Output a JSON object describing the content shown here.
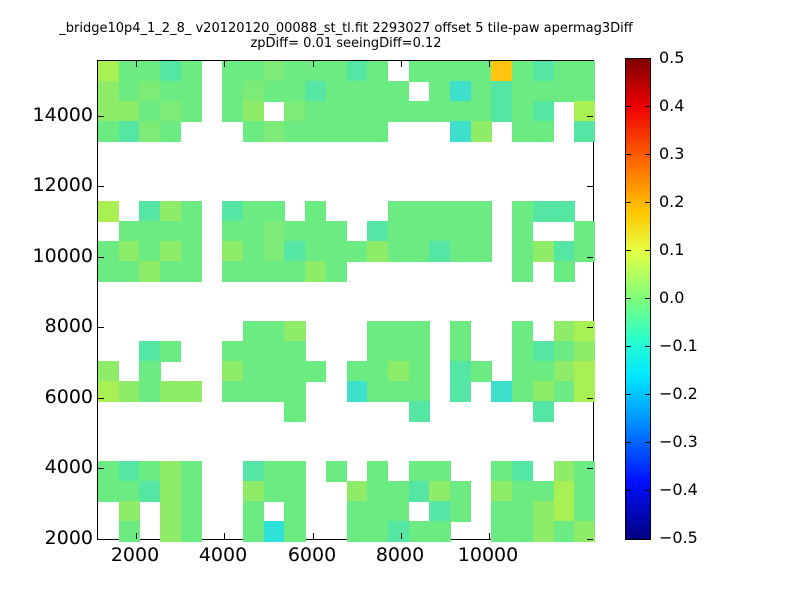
{
  "chart_data": {
    "type": "heatmap",
    "title": "_bridge10p4_1_2_8_ v20120120_00088_st_tl.fit 2293027 offset 5 tile-paw apermag3Diff",
    "subtitle": "zpDiff= 0.01 seeingDiff=0.12",
    "legend_position": "right-colorbar",
    "grid_lines": false,
    "x_axis": {
      "range": [
        1144,
        12343
      ],
      "ticks": [
        2000,
        4000,
        6000,
        8000,
        10000
      ]
    },
    "y_axis": {
      "range": [
        2000,
        15553
      ],
      "ticks": [
        2000,
        4000,
        6000,
        8000,
        10000,
        12000,
        14000
      ]
    },
    "colorbar": {
      "colormap": "jet",
      "min": -0.5,
      "max": 0.5,
      "tick_labels": [
        "0.5",
        "0.4",
        "0.3",
        "0.2",
        "0.1",
        "0.0",
        "−0.1",
        "−0.2",
        "−0.3",
        "−0.4",
        "−0.5"
      ]
    },
    "heatmap": {
      "cols": 24,
      "rows": 24,
      "note": "apermag3Diff per detector cell; '.' = no data; rows listed top (y=15500) to bottom (y=2000)",
      "palette": {
        "a": "#6ceb83",
        "b": "#7deb76",
        "c": "#55e6a4",
        "d": "#3fe0cb",
        "e": "#a9f054",
        "f": "#8eec69",
        "g": "#ffc50f",
        "h": "#2ee2d9"
      },
      "value_map": {
        "a": 0.02,
        "b": 0.03,
        "c": -0.04,
        "d": -0.09,
        "e": 0.09,
        "f": 0.06,
        "g": 0.22,
        "h": -0.12
      },
      "cells": [
        "eaaca.aabaaaca.aaaagacaa",
        "fabaa.abaacaaaa.adacaaaa",
        "ffaba.af.baaaaaaaaacac.e",
        "acba...abaaaaa...df.aa.c",
        "........................",
        "........................",
        "........................",
        "e.cfa.caa.a...aaaaa.acc.",
        ".aaaa.aabaaa.caaaaa.a..a",
        "afafa.fabcaaafaacaa.afca",
        "aafaa.aaaafa........a.a.",
        "........................",
        "........................",
        ".......aaf...aaa.a..a.fe",
        "..ca..aaaa...aaa.a..acaf",
        "f.a...faaaa.aafa.ca.aafe",
        "efaff.aaaa..daaa.c.dafae",
        ".........a.....c.....c..",
        "........................",
        "........................",
        "acafa..caa.a.a.aa..ac.fa",
        "aacfa..faa..faacfa.faaea",
        ".f.fa..a.a..aaa.ca.aafea",
        ".a.fa..aha..aacaa..aafaf"
      ]
    }
  }
}
